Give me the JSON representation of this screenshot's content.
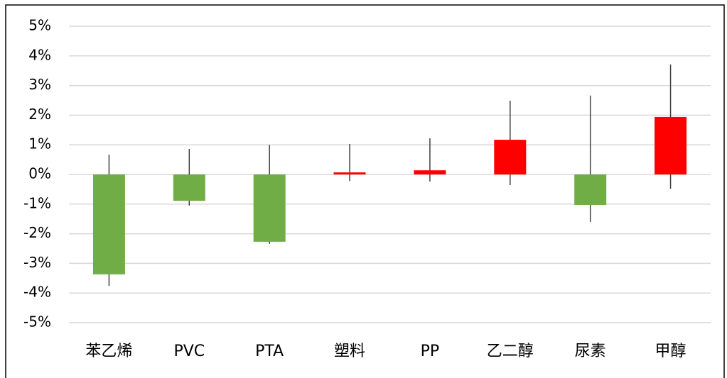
{
  "chart_data": {
    "type": "bar",
    "categories": [
      "苯乙烯",
      "PVC",
      "PTA",
      "塑料",
      "PP",
      "乙二醇",
      "尿素",
      "甲醇"
    ],
    "values": [
      -3.37,
      -0.89,
      -2.27,
      0.07,
      0.14,
      1.17,
      -1.03,
      1.94
    ],
    "highs": [
      0.67,
      0.86,
      1.0,
      1.03,
      1.22,
      2.49,
      2.66,
      3.71
    ],
    "lows": [
      -3.76,
      -1.05,
      -2.34,
      -0.22,
      -0.24,
      -0.36,
      -1.6,
      -0.48
    ],
    "up_color": "#ff0000",
    "down_color": "#70ad47",
    "whisker_color": "#404040",
    "ylim": [
      -5,
      5
    ],
    "yticks": [
      {
        "value": 5,
        "label": "5%"
      },
      {
        "value": 4,
        "label": "4%"
      },
      {
        "value": 3,
        "label": "3%"
      },
      {
        "value": 2,
        "label": "2%"
      },
      {
        "value": 1,
        "label": "1%"
      },
      {
        "value": 0,
        "label": "0%"
      },
      {
        "value": -1,
        "label": "-1%"
      },
      {
        "value": -2,
        "label": "-2%"
      },
      {
        "value": -3,
        "label": "-3%"
      },
      {
        "value": -4,
        "label": "-4%"
      },
      {
        "value": -5,
        "label": "-5%"
      }
    ],
    "grid": true
  }
}
